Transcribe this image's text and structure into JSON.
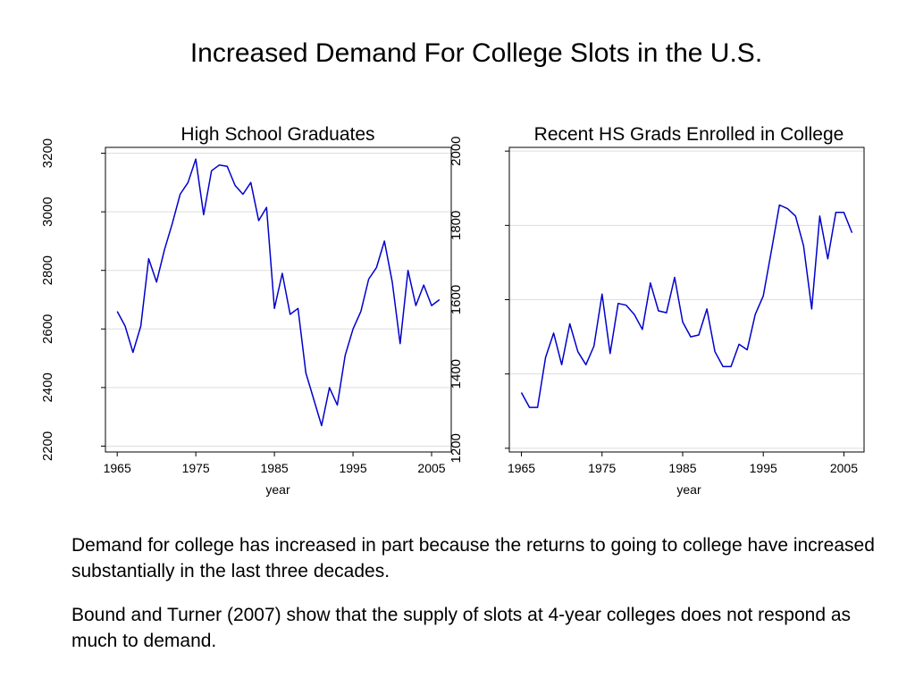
{
  "slide": {
    "title": "Increased Demand For College Slots in the U.S.",
    "paragraphs": [
      "Demand for college has increased in part because the returns to going to college have increased substantially in the last three decades.",
      "Bound and Turner (2007) show that the supply of slots at 4-year colleges does not respond as much to demand."
    ]
  },
  "colors": {
    "line": "#0000cc",
    "grid": "#dddddd",
    "frame": "#000000"
  },
  "chart_data": [
    {
      "type": "line",
      "title": "High School Graduates",
      "xlabel": "year",
      "ylabel": "",
      "xlim": [
        1963.5,
        2007.5
      ],
      "ylim": [
        2180,
        3220
      ],
      "xticks": [
        1965,
        1975,
        1985,
        1995,
        2005
      ],
      "yticks": [
        2200,
        2400,
        2600,
        2800,
        3000,
        3200
      ],
      "x": [
        1965,
        1966,
        1967,
        1968,
        1969,
        1970,
        1971,
        1972,
        1973,
        1974,
        1975,
        1976,
        1977,
        1978,
        1979,
        1980,
        1981,
        1982,
        1983,
        1984,
        1985,
        1986,
        1987,
        1988,
        1989,
        1990,
        1991,
        1992,
        1993,
        1994,
        1995,
        1996,
        1997,
        1998,
        1999,
        2000,
        2001,
        2002,
        2003,
        2004,
        2005,
        2006
      ],
      "series": [
        {
          "name": "High School Graduates",
          "values": [
            2660,
            2610,
            2520,
            2610,
            2840,
            2760,
            2870,
            2960,
            3060,
            3100,
            3180,
            2990,
            3140,
            3160,
            3155,
            3090,
            3060,
            3100,
            2970,
            3015,
            2670,
            2790,
            2650,
            2670,
            2450,
            2360,
            2270,
            2400,
            2340,
            2510,
            2600,
            2660,
            2770,
            2810,
            2900,
            2760,
            2550,
            2800,
            2680,
            2750,
            2680,
            2700
          ]
        }
      ]
    },
    {
      "type": "line",
      "title": "Recent HS Grads Enrolled in College",
      "xlabel": "year",
      "ylabel": "",
      "xlim": [
        1963.5,
        2007.5
      ],
      "ylim": [
        1190,
        2010
      ],
      "xticks": [
        1965,
        1975,
        1985,
        1995,
        2005
      ],
      "yticks": [
        1200,
        1400,
        1600,
        1800,
        2000
      ],
      "x": [
        1965,
        1966,
        1967,
        1968,
        1969,
        1970,
        1971,
        1972,
        1973,
        1974,
        1975,
        1976,
        1977,
        1978,
        1979,
        1980,
        1981,
        1982,
        1983,
        1984,
        1985,
        1986,
        1987,
        1988,
        1989,
        1990,
        1991,
        1992,
        1993,
        1994,
        1995,
        1996,
        1997,
        1998,
        1999,
        2000,
        2001,
        2002,
        2003,
        2004,
        2005,
        2006
      ],
      "series": [
        {
          "name": "Recent HS Grads Enrolled in College",
          "values": [
            1350,
            1310,
            1310,
            1445,
            1510,
            1425,
            1535,
            1460,
            1425,
            1475,
            1615,
            1455,
            1590,
            1585,
            1560,
            1520,
            1645,
            1570,
            1565,
            1660,
            1540,
            1500,
            1505,
            1575,
            1460,
            1420,
            1420,
            1480,
            1465,
            1560,
            1610,
            1730,
            1855,
            1845,
            1825,
            1745,
            1575,
            1825,
            1710,
            1835,
            1835,
            1780
          ]
        }
      ]
    }
  ]
}
